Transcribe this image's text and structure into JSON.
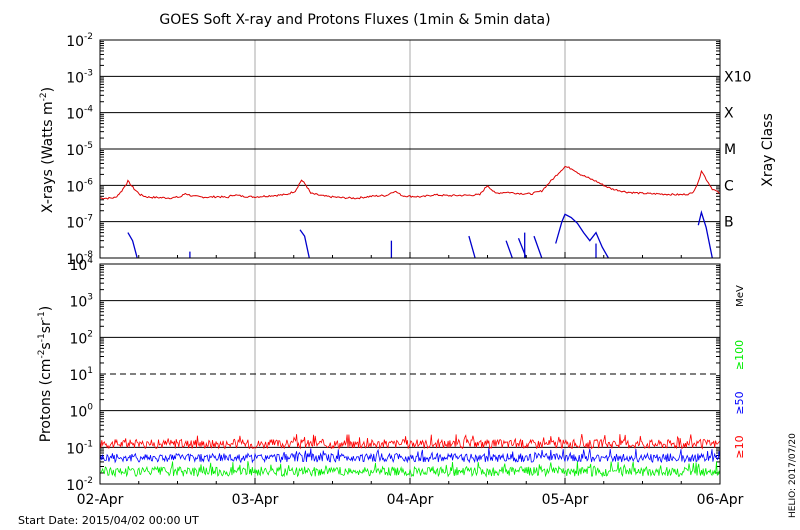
{
  "figure": {
    "title": "GOES Soft X-ray and Protons Fluxes   (1min & 5min data)",
    "start_date": "Start Date: 2015/04/02 00:00 UT",
    "credit": "HELIO: 2017/07/20"
  },
  "colors": {
    "xray_long": "#dd0000",
    "xray_short": "#0000cc",
    "p10": "#ff0000",
    "p50": "#0000ff",
    "p100": "#00ee00",
    "day_grid": "#aaaaaa",
    "frame": "#000000"
  },
  "chart_data": [
    {
      "type": "line",
      "panel": "xrays",
      "ylabel_base": "X-rays (Watts m",
      "ylabel_sup": "-2",
      "ylabel_close": ")",
      "yscale": "log",
      "ylim": [
        1e-08,
        0.01
      ],
      "ytick_labels": [
        {
          "base": "10",
          "exp": "-2"
        },
        {
          "base": "10",
          "exp": "-3"
        },
        {
          "base": "10",
          "exp": "-4"
        },
        {
          "base": "10",
          "exp": "-5"
        },
        {
          "base": "10",
          "exp": "-6"
        },
        {
          "base": "10",
          "exp": "-7"
        },
        {
          "base": "10",
          "exp": "-8"
        }
      ],
      "class_axis_title": "Xray Class",
      "class_labels": [
        "X10",
        "X",
        "M",
        "C",
        "B"
      ],
      "xlim_days": [
        0,
        4
      ],
      "series": [
        {
          "name": "",
          "points": [
            [
              0.0,
              4.5e-07
            ],
            [
              0.05,
              4.4e-07
            ],
            [
              0.1,
              4.6e-07
            ],
            [
              0.14,
              7e-07
            ],
            [
              0.18,
              1.3e-06
            ],
            [
              0.22,
              8e-07
            ],
            [
              0.26,
              5.5e-07
            ],
            [
              0.3,
              4.8e-07
            ],
            [
              0.33,
              4.7e-07
            ],
            [
              0.38,
              4.6e-07
            ],
            [
              0.45,
              4.5e-07
            ],
            [
              0.52,
              4.8e-07
            ],
            [
              0.55,
              6e-07
            ],
            [
              0.6,
              5e-07
            ],
            [
              0.65,
              4.8e-07
            ],
            [
              0.7,
              4.7e-07
            ],
            [
              0.76,
              4.9e-07
            ],
            [
              0.82,
              4.6e-07
            ],
            [
              0.86,
              5.5e-07
            ],
            [
              0.92,
              5e-07
            ],
            [
              1.0,
              4.8e-07
            ],
            [
              1.1,
              5.2e-07
            ],
            [
              1.2,
              5.5e-07
            ],
            [
              1.26,
              7e-07
            ],
            [
              1.3,
              1.4e-06
            ],
            [
              1.33,
              1e-06
            ],
            [
              1.36,
              6e-07
            ],
            [
              1.45,
              5e-07
            ],
            [
              1.55,
              4.6e-07
            ],
            [
              1.65,
              4.4e-07
            ],
            [
              1.75,
              5e-07
            ],
            [
              1.85,
              5.3e-07
            ],
            [
              1.9,
              7e-07
            ],
            [
              1.95,
              5.2e-07
            ],
            [
              2.0,
              5e-07
            ],
            [
              2.08,
              4.8e-07
            ],
            [
              2.15,
              5.5e-07
            ],
            [
              2.25,
              5.2e-07
            ],
            [
              2.35,
              5.3e-07
            ],
            [
              2.45,
              5.5e-07
            ],
            [
              2.5,
              1e-06
            ],
            [
              2.55,
              6e-07
            ],
            [
              2.62,
              6.5e-07
            ],
            [
              2.7,
              6e-07
            ],
            [
              2.78,
              5.8e-07
            ],
            [
              2.85,
              7e-07
            ],
            [
              2.9,
              1.2e-06
            ],
            [
              2.95,
              2e-06
            ],
            [
              3.0,
              3.3e-06
            ],
            [
              3.05,
              2.8e-06
            ],
            [
              3.1,
              2e-06
            ],
            [
              3.15,
              1.6e-06
            ],
            [
              3.2,
              1.3e-06
            ],
            [
              3.25,
              1e-06
            ],
            [
              3.3,
              8e-07
            ],
            [
              3.4,
              6.5e-07
            ],
            [
              3.5,
              6e-07
            ],
            [
              3.6,
              5.8e-07
            ],
            [
              3.75,
              5.5e-07
            ],
            [
              3.82,
              6e-07
            ],
            [
              3.86,
              1.2e-06
            ],
            [
              3.88,
              2.6e-06
            ],
            [
              3.91,
              1.5e-06
            ],
            [
              3.95,
              8e-07
            ],
            [
              4.0,
              6e-07
            ]
          ]
        },
        {
          "name": "",
          "points": [
            [
              0.18,
              5e-08
            ],
            [
              0.21,
              3e-08
            ],
            [
              0.24,
              1e-08
            ],
            [
              1.29,
              6e-08
            ],
            [
              1.32,
              4e-08
            ],
            [
              1.35,
              1e-08
            ],
            [
              2.38,
              4e-08
            ],
            [
              2.42,
              1e-08
            ],
            [
              2.62,
              3e-08
            ],
            [
              2.66,
              1e-08
            ],
            [
              2.7,
              3.5e-08
            ],
            [
              2.75,
              1e-08
            ],
            [
              2.8,
              4e-08
            ],
            [
              2.85,
              1e-08
            ],
            [
              2.94,
              2.5e-08
            ],
            [
              2.98,
              1e-07
            ],
            [
              3.0,
              1.6e-07
            ],
            [
              3.04,
              1.3e-07
            ],
            [
              3.08,
              9e-08
            ],
            [
              3.12,
              5e-08
            ],
            [
              3.16,
              3e-08
            ],
            [
              3.2,
              5e-08
            ],
            [
              3.24,
              2e-08
            ],
            [
              3.28,
              1e-08
            ],
            [
              3.86,
              8e-08
            ],
            [
              3.88,
              1.8e-07
            ],
            [
              3.91,
              7e-08
            ],
            [
              3.95,
              1e-08
            ]
          ]
        }
      ],
      "isolated_spikes": [
        {
          "x": 0.58,
          "y": 1.5e-08
        },
        {
          "x": 1.88,
          "y": 3e-08
        },
        {
          "x": 2.74,
          "y": 5e-08
        },
        {
          "x": 3.2,
          "y": 2.5e-08
        }
      ]
    },
    {
      "type": "line",
      "panel": "protons",
      "ylabel_base": "Protons (cm",
      "ylabel_sups": [
        "-2",
        "-1",
        "-1"
      ],
      "yscale": "log",
      "ylim": [
        0.01,
        10000
      ],
      "ytick_labels": [
        "10^4",
        "10^3",
        "10^2",
        "10^1",
        "1.0",
        "0.1",
        "10^-2"
      ],
      "ytick_display": [
        {
          "base": "10",
          "exp": "4"
        },
        {
          "base": "10",
          "exp": "3"
        },
        {
          "base": "10",
          "exp": "2"
        },
        {
          "base": "10",
          "exp": "1"
        },
        {
          "base": "10",
          "exp": "0"
        },
        {
          "base": "10",
          "exp": "-1"
        },
        {
          "base": "10",
          "exp": "-2"
        }
      ],
      "threshold": 10,
      "energy_unit": "MeV",
      "series": [
        {
          "name": "≥10",
          "approx_level": 0.11,
          "range": [
            0.07,
            0.22
          ]
        },
        {
          "name": "≥50",
          "approx_level": 0.045,
          "range": [
            0.03,
            0.09
          ]
        },
        {
          "name": "≥100",
          "approx_level": 0.02,
          "range": [
            0.012,
            0.04
          ]
        }
      ],
      "xtick_labels": [
        "02-Apr",
        "03-Apr",
        "04-Apr",
        "05-Apr",
        "06-Apr"
      ]
    }
  ]
}
